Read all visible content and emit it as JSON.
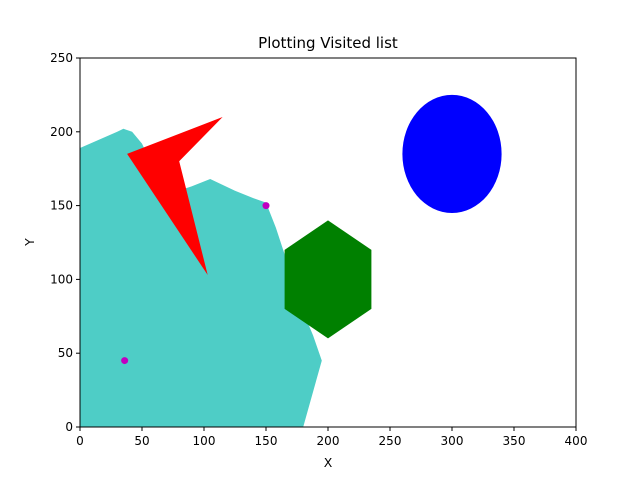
{
  "chart_data": {
    "type": "scatter",
    "title": "Plotting Visited list",
    "xlabel": "X",
    "ylabel": "Y",
    "xlim": [
      0,
      400
    ],
    "ylim": [
      0,
      250
    ],
    "xticks": [
      0,
      50,
      100,
      150,
      200,
      250,
      300,
      350,
      400
    ],
    "yticks": [
      0,
      50,
      100,
      150,
      200,
      250
    ],
    "grid": false,
    "visited_region": {
      "color": "#4ECDC6",
      "outline": [
        [
          0,
          0
        ],
        [
          0,
          189
        ],
        [
          30,
          200
        ],
        [
          35,
          202
        ],
        [
          42,
          200
        ],
        [
          50,
          192
        ],
        [
          55,
          183
        ],
        [
          72,
          158
        ],
        [
          90,
          163
        ],
        [
          105,
          168
        ],
        [
          125,
          160
        ],
        [
          140,
          155
        ],
        [
          150,
          152
        ],
        [
          158,
          135
        ],
        [
          165,
          117
        ],
        [
          170,
          100
        ],
        [
          180,
          78
        ],
        [
          188,
          62
        ],
        [
          195,
          45
        ],
        [
          190,
          30
        ],
        [
          180,
          0
        ]
      ]
    },
    "obstacles": [
      {
        "shape": "ellipse",
        "color": "#0000FF",
        "center": [
          300,
          185
        ],
        "radius_x": 40,
        "radius_y": 40
      },
      {
        "shape": "hexagon",
        "color": "#008000",
        "points": [
          [
            200,
            140
          ],
          [
            235,
            120
          ],
          [
            235,
            80
          ],
          [
            200,
            60
          ],
          [
            165,
            80
          ],
          [
            165,
            120
          ]
        ]
      },
      {
        "shape": "polygon",
        "color": "#FF0000",
        "points": [
          [
            115,
            210
          ],
          [
            80,
            180
          ],
          [
            103,
            103
          ],
          [
            38,
            185
          ]
        ]
      }
    ],
    "markers": [
      {
        "x": 36,
        "y": 45,
        "color": "#C000C0"
      },
      {
        "x": 150,
        "y": 150,
        "color": "#C000C0"
      }
    ]
  }
}
